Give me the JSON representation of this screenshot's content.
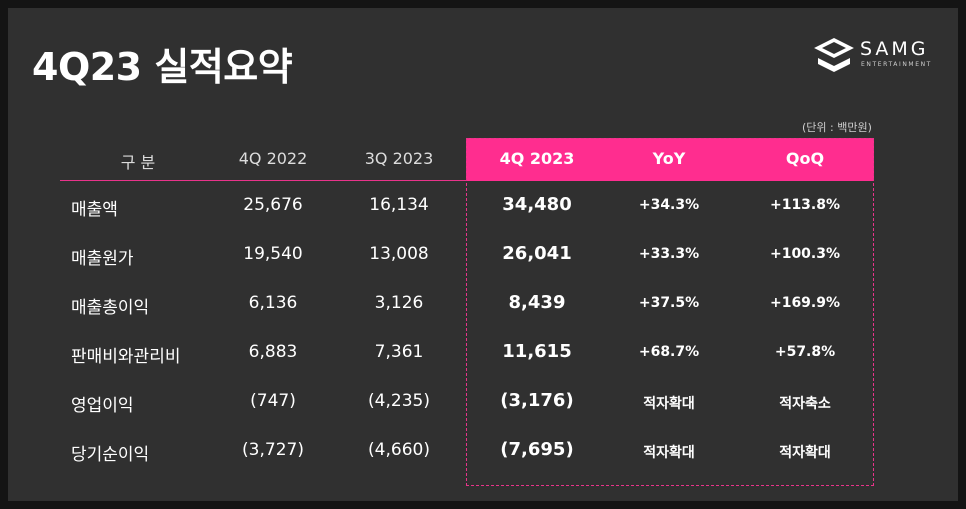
{
  "title": "4Q23 실적요약",
  "logo": {
    "main": "SAMG",
    "sub": "ENTERTAINMENT"
  },
  "unit": "(단위 : 백만원)",
  "colors": {
    "accent": "#ff2d8f",
    "background": "#303030",
    "text": "#ffffff"
  },
  "table": {
    "headers": [
      "구  분",
      "4Q 2022",
      "3Q 2023",
      "4Q 2023",
      "YoY",
      "QoQ"
    ],
    "rows": [
      {
        "label": "매출액",
        "q4_2022": "25,676",
        "q3_2023": "16,134",
        "q4_2023": "34,480",
        "yoy": "+34.3%",
        "qoq": "+113.8%"
      },
      {
        "label": "매출원가",
        "q4_2022": "19,540",
        "q3_2023": "13,008",
        "q4_2023": "26,041",
        "yoy": "+33.3%",
        "qoq": "+100.3%"
      },
      {
        "label": "매출총이익",
        "q4_2022": "6,136",
        "q3_2023": "3,126",
        "q4_2023": "8,439",
        "yoy": "+37.5%",
        "qoq": "+169.9%"
      },
      {
        "label": "판매비와관리비",
        "q4_2022": "6,883",
        "q3_2023": "7,361",
        "q4_2023": "11,615",
        "yoy": "+68.7%",
        "qoq": "+57.8%"
      },
      {
        "label": "영업이익",
        "q4_2022": "(747)",
        "q3_2023": "(4,235)",
        "q4_2023": "(3,176)",
        "yoy": "적자확대",
        "qoq": "적자축소"
      },
      {
        "label": "당기순이익",
        "q4_2022": "(3,727)",
        "q3_2023": "(4,660)",
        "q4_2023": "(7,695)",
        "yoy": "적자확대",
        "qoq": "적자확대"
      }
    ]
  }
}
